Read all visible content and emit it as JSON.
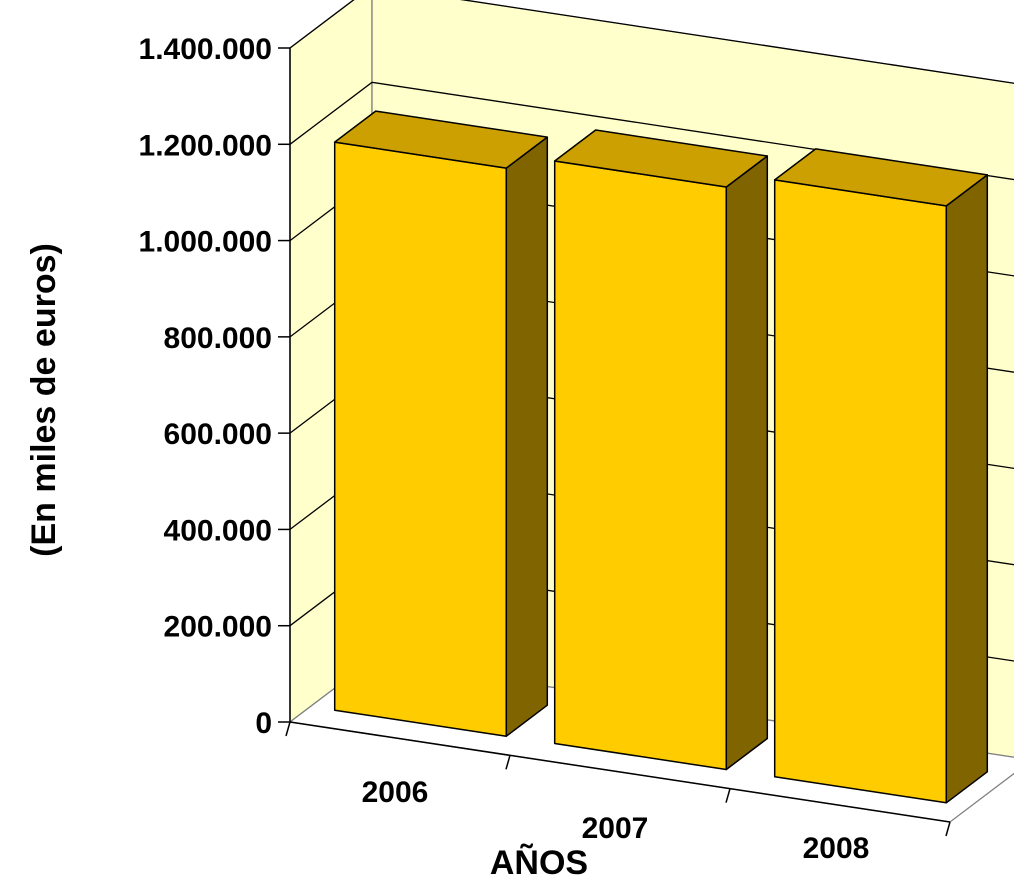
{
  "chart_data": {
    "type": "bar",
    "style": "3d-column",
    "title": "",
    "xlabel": "AÑOS",
    "ylabel": "(En miles de euros)",
    "categories": [
      "2006",
      "2007",
      "2008"
    ],
    "series": [
      {
        "values": [
          1180000,
          1210000,
          1240000
        ]
      }
    ],
    "ylim": [
      0,
      1400000
    ],
    "yticks": [
      {
        "value": 0,
        "label": "0"
      },
      {
        "value": 200000,
        "label": "200.000"
      },
      {
        "value": 400000,
        "label": "400.000"
      },
      {
        "value": 600000,
        "label": "600.000"
      },
      {
        "value": 800000,
        "label": "800.000"
      },
      {
        "value": 1000000,
        "label": "1.000.000"
      },
      {
        "value": 1200000,
        "label": "1.200.000"
      },
      {
        "value": 1400000,
        "label": "1.400.000"
      }
    ],
    "grid": true,
    "legend": "none",
    "colors": {
      "wall": "#FFFFCC",
      "bar_front": "#FFCC00",
      "bar_top": "#CCA000",
      "bar_side": "#806400",
      "outline": "#000000"
    }
  }
}
